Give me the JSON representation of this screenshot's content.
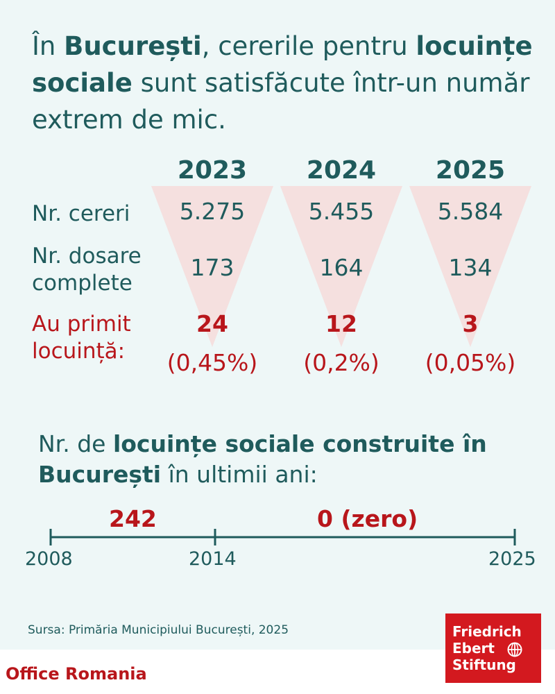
{
  "headline": {
    "p1": "În ",
    "b1": "București",
    "p2": ", cererile pentru ",
    "b2": "locuințe sociale",
    "p3": " sunt satisfăcute într-un număr extrem de mic."
  },
  "table": {
    "years": [
      "2023",
      "2024",
      "2025"
    ],
    "row_labels": {
      "requests": "Nr. cereri",
      "complete_line1": "Nr. dosare",
      "complete_line2": "complete",
      "received_line1": "Au primit",
      "received_line2": "locuință:"
    },
    "pct": [
      "(0,45%)",
      "(0,2%)",
      "(0,05%)"
    ]
  },
  "chart_data": [
    {
      "type": "table",
      "columns": [
        "2023",
        "2024",
        "2025"
      ],
      "rows": [
        {
          "label": "Nr. cereri",
          "display": [
            "5.275",
            "5.455",
            "5.584"
          ],
          "values": [
            5275,
            5455,
            5584
          ]
        },
        {
          "label": "Nr. dosare complete",
          "display": [
            "173",
            "164",
            "134"
          ],
          "values": [
            173,
            164,
            134
          ]
        },
        {
          "label": "Au primit locuință:",
          "display": [
            "24",
            "12",
            "3"
          ],
          "values": [
            24,
            12,
            3
          ],
          "percent_display": [
            "(0,45%)",
            "(0,2%)",
            "(0,05%)"
          ]
        }
      ],
      "colors": {
        "text": "#1f5b5c",
        "highlight": "#b8161b",
        "triangle": "#f6dcda"
      }
    },
    {
      "type": "timeline",
      "ticks": [
        2008,
        2014,
        2025
      ],
      "tick_labels": [
        "2008",
        "2014",
        "2025"
      ],
      "segments": [
        {
          "from": 2008,
          "to": 2014,
          "label": "242"
        },
        {
          "from": 2014,
          "to": 2025,
          "label": "0 (zero)"
        }
      ]
    }
  ],
  "subhead": {
    "p1": "Nr. de ",
    "b1": "locuințe sociale construite în București",
    "p2": " în ultimii ani:"
  },
  "source": "Sursa: Primăria Municipiului București, 2025",
  "footer": {
    "office": "Office Romania",
    "logo": [
      "Friedrich",
      "Ebert",
      "Stiftung"
    ],
    "brand_red": "#d3191f"
  }
}
